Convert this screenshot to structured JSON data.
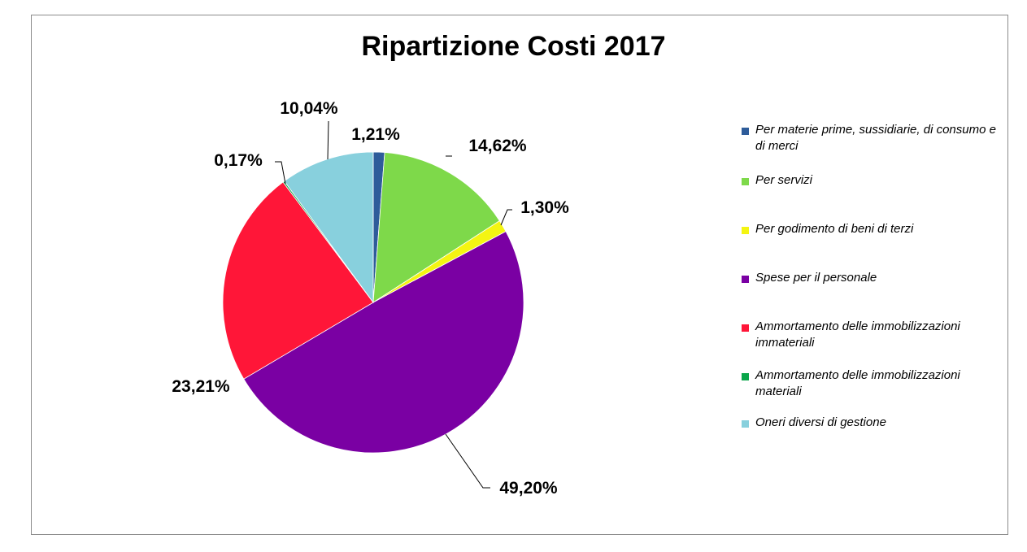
{
  "chart_data": {
    "type": "pie",
    "title": "Ripartizione Costi 2017",
    "slices": [
      {
        "label": "Per materie prime, sussidiarie, di consumo e di merci",
        "value": 1.21,
        "display": "1,21%",
        "color": "#2e5c9a"
      },
      {
        "label": "Per servizi",
        "value": 14.62,
        "display": "14,62%",
        "color": "#7ed94a"
      },
      {
        "label": "Per godimento di beni di terzi",
        "value": 1.3,
        "display": "1,30%",
        "color": "#f4f512"
      },
      {
        "label": "Spese per il personale",
        "value": 49.2,
        "display": "49,20%",
        "color": "#7a00a3"
      },
      {
        "label": "Ammortamento delle immobilizzazioni immateriali",
        "value": 23.21,
        "display": "23,21%",
        "color": "#ff1638"
      },
      {
        "label": "Ammortamento delle immobilizzazioni materiali",
        "value": 0.17,
        "display": "0,17%",
        "color": "#0aa64a"
      },
      {
        "label": "Oneri diversi di gestione",
        "value": 10.04,
        "display": "10,04%",
        "color": "#88d0dd"
      }
    ],
    "legend_position": "right"
  }
}
